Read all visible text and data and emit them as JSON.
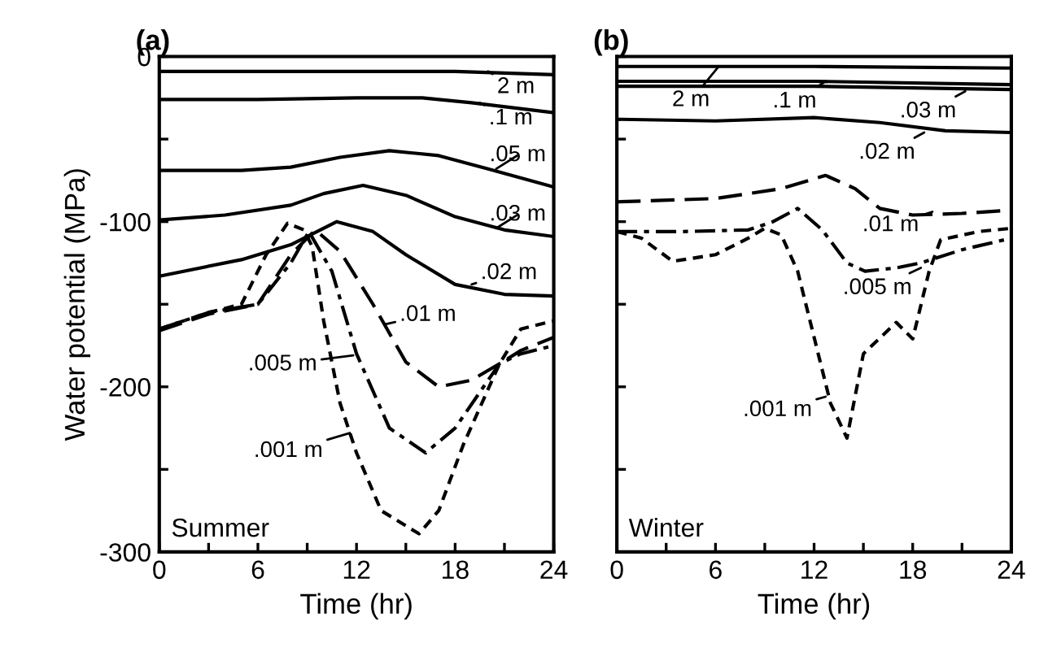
{
  "chart_data": [
    {
      "type": "line",
      "title": "(a)",
      "xlabel": "Time (hr)",
      "ylabel": "Water potential (MPa)",
      "xlim": [
        0,
        24
      ],
      "ylim": [
        -300,
        0
      ],
      "xticks": [
        0,
        {
          "value": 3,
          "label": null
        },
        6,
        {
          "value": 9,
          "label": null
        },
        12,
        {
          "value": 15,
          "label": null
        },
        18,
        {
          "value": 21,
          "label": null
        },
        24
      ],
      "yticks": [
        -300,
        {
          "value": -250,
          "label": null
        },
        -200,
        {
          "value": -150,
          "label": null
        },
        -100,
        {
          "value": -50,
          "label": null
        },
        0
      ],
      "grid": false,
      "legend": false,
      "marker": "none",
      "series": [
        {
          "color": "#000000",
          "line_style": "solid",
          "x": [
            0,
            6,
            12,
            18,
            24
          ],
          "values": [
            -9,
            -9,
            -9,
            -9,
            -11
          ]
        },
        {
          "color": "#000000",
          "line_style": "solid",
          "x": [
            0,
            6,
            12,
            16,
            19,
            24
          ],
          "values": [
            -26,
            -26,
            -25,
            -25,
            -28,
            -34
          ]
        },
        {
          "color": "#000000",
          "line_style": "solid",
          "x": [
            0,
            5,
            8,
            11,
            14,
            17,
            20,
            24
          ],
          "values": [
            -69,
            -69,
            -67,
            -61,
            -57,
            -60,
            -68,
            -79
          ]
        },
        {
          "color": "#000000",
          "line_style": "solid",
          "x": [
            0,
            4,
            8,
            10,
            12.4,
            15,
            18,
            21,
            24
          ],
          "values": [
            -99,
            -96,
            -90,
            -83,
            -78,
            -84,
            -97,
            -105,
            -109
          ]
        },
        {
          "color": "#000000",
          "line_style": "solid",
          "x": [
            0,
            5,
            8,
            10.8,
            13,
            15,
            18,
            21,
            24
          ],
          "values": [
            -133,
            -123,
            -114,
            -100,
            -106,
            -120,
            -138,
            -144,
            -145
          ]
        },
        {
          "color": "#000000",
          "line_style": "dashed",
          "x": [
            0,
            3,
            6,
            8,
            9.5,
            11,
            13,
            15,
            17,
            19,
            20.7,
            22,
            24
          ],
          "values": [
            -166,
            -156,
            -150,
            -120,
            -105,
            -118,
            -150,
            -185,
            -200,
            -196,
            -186,
            -178,
            -170
          ]
        },
        {
          "color": "#000000",
          "line_style": "dashdot",
          "x": [
            0,
            3,
            6,
            8,
            9.1,
            10.5,
            12,
            14,
            16.2,
            18,
            20.7,
            22,
            24
          ],
          "values": [
            -165,
            -155,
            -150,
            -125,
            -106,
            -130,
            -180,
            -225,
            -240,
            -225,
            -186,
            -180,
            -175
          ]
        },
        {
          "color": "#000000",
          "line_style": "dotted",
          "x": [
            0,
            3,
            5,
            6.5,
            7.8,
            8.8,
            9.3,
            10,
            11,
            12,
            13.5,
            15.8,
            17,
            18.5,
            20.7,
            22,
            24
          ],
          "values": [
            -165,
            -155,
            -150,
            -120,
            -101,
            -105,
            -115,
            -160,
            -210,
            -240,
            -275,
            -289,
            -275,
            -235,
            -186,
            -165,
            -160
          ]
        }
      ],
      "annotations": [
        {
          "text": "2 m",
          "x": 20,
          "y": -9
        },
        {
          "text": ".1 m",
          "x": 19.5,
          "y": -28
        },
        {
          "text": ".05 m",
          "x": 20.5,
          "y": -68
        },
        {
          "text": ".03 m",
          "x": 20.5,
          "y": -104
        },
        {
          "text": ".02 m",
          "x": 19,
          "y": -138
        },
        {
          "text": ".01 m",
          "x": 13.8,
          "y": -162
        },
        {
          "text": ".005 m",
          "x": 11.8,
          "y": -181
        },
        {
          "text": ".001 m",
          "x": 11.6,
          "y": -228
        },
        "Summer"
      ]
    },
    {
      "type": "line",
      "title": "(b)",
      "xlabel": "Time (hr)",
      "xlim": [
        0,
        24
      ],
      "ylim": [
        -300,
        0
      ],
      "tick_labels": "x",
      "xticks": [
        0,
        {
          "value": 3,
          "label": null
        },
        6,
        {
          "value": 9,
          "label": null
        },
        12,
        {
          "value": 15,
          "label": null
        },
        18,
        {
          "value": 21,
          "label": null
        },
        24
      ],
      "yticks": [
        -300,
        {
          "value": -250,
          "label": null
        },
        -200,
        {
          "value": -150,
          "label": null
        },
        -100,
        {
          "value": -50,
          "label": null
        },
        0
      ],
      "grid": false,
      "legend": false,
      "marker": "none",
      "series": [
        {
          "color": "#000000",
          "line_style": "solid",
          "x": [
            0,
            12,
            24
          ],
          "values": [
            -6,
            -6,
            -7
          ]
        },
        {
          "color": "#000000",
          "line_style": "solid",
          "x": [
            0,
            12,
            24
          ],
          "values": [
            -15,
            -15,
            -17
          ]
        },
        {
          "color": "#000000",
          "line_style": "solid",
          "x": [
            0,
            12,
            24
          ],
          "values": [
            -18,
            -18,
            -20
          ]
        },
        {
          "color": "#000000",
          "line_style": "solid",
          "x": [
            0,
            6,
            12,
            16,
            20,
            24
          ],
          "values": [
            -38,
            -39,
            -37,
            -40,
            -45,
            -46
          ]
        },
        {
          "color": "#000000",
          "line_style": "dashed",
          "x": [
            0,
            6,
            10,
            12.7,
            14.5,
            16,
            18,
            21,
            24
          ],
          "values": [
            -88,
            -86,
            -80,
            -72,
            -80,
            -92,
            -96,
            -95,
            -93
          ]
        },
        {
          "color": "#000000",
          "line_style": "dashdot",
          "x": [
            0,
            4,
            8,
            9.5,
            11,
            12.5,
            14,
            15.1,
            17,
            18.5,
            21,
            24
          ],
          "values": [
            -106,
            -106,
            -105,
            -100,
            -92,
            -105,
            -125,
            -130,
            -128,
            -125,
            -117,
            -110
          ]
        },
        {
          "color": "#000000",
          "line_style": "dotted",
          "x": [
            0,
            1.5,
            3.4,
            6,
            8,
            9,
            10,
            11,
            12,
            13,
            14,
            15,
            17,
            18,
            19,
            19.7,
            22,
            24
          ],
          "values": [
            -106,
            -110,
            -124,
            -120,
            -110,
            -104,
            -108,
            -130,
            -170,
            -210,
            -231,
            -180,
            -161,
            -171,
            -130,
            -111,
            -106,
            -104
          ]
        }
      ],
      "annotations": [
        {
          "text": "2 m",
          "x": 6.2,
          "y": -6
        },
        {
          "text": ".1 m",
          "x": 12.7,
          "y": -15
        },
        {
          "text": ".03 m",
          "x": 21.2,
          "y": -21
        },
        {
          "text": ".02 m",
          "x": 18.7,
          "y": -46
        },
        {
          "text": ".01 m",
          "x": 19.2,
          "y": -94
        },
        {
          "text": ".005 m",
          "x": 18.5,
          "y": -128
        },
        {
          "text": ".001 m",
          "x": 12.7,
          "y": -206
        },
        "Winter"
      ]
    }
  ]
}
